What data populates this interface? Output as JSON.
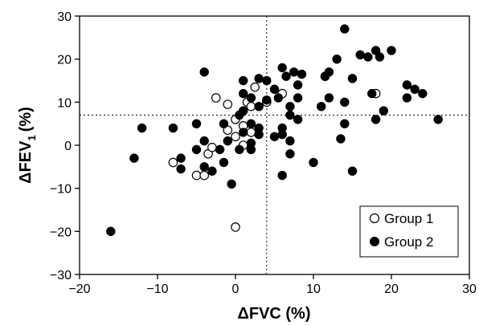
{
  "chart_data": {
    "type": "scatter",
    "xlabel": "ΔFVC (%)",
    "ylabel_main": "ΔFEV",
    "ylabel_sub": "1",
    "ylabel_unit": "(%)",
    "xlim": [
      -20,
      30
    ],
    "ylim": [
      -30,
      30
    ],
    "x_ticks": [
      -20,
      -10,
      0,
      10,
      20,
      30
    ],
    "y_ticks": [
      -30,
      -20,
      -10,
      0,
      10,
      20,
      30
    ],
    "x_tick_labels": [
      "−20",
      "−10",
      "0",
      "10",
      "20",
      "30"
    ],
    "y_tick_labels": [
      "−30",
      "−20",
      "−10",
      "0",
      "10",
      "20",
      "30"
    ],
    "reference_lines": {
      "x": 4,
      "y": 7,
      "style": "dotted"
    },
    "grid": false,
    "legend_position": "bottom-right",
    "series": [
      {
        "name": "Group 1",
        "marker": "open-circle",
        "color": "#000000",
        "points": [
          [
            -8,
            -4
          ],
          [
            -5,
            -7
          ],
          [
            -4,
            -7
          ],
          [
            -3.5,
            -2
          ],
          [
            -3,
            -0.5
          ],
          [
            -2.5,
            11
          ],
          [
            -1,
            9.5
          ],
          [
            -1,
            3.5
          ],
          [
            0,
            6
          ],
          [
            0,
            2
          ],
          [
            0,
            -19
          ],
          [
            1,
            0
          ],
          [
            1,
            4.5
          ],
          [
            1.5,
            10
          ],
          [
            2,
            9
          ],
          [
            2,
            3
          ],
          [
            2.5,
            13.5
          ],
          [
            4,
            10
          ],
          [
            6,
            12
          ],
          [
            11.5,
            16
          ],
          [
            18,
            12
          ]
        ]
      },
      {
        "name": "Group 2",
        "marker": "filled-circle",
        "color": "#000000",
        "points": [
          [
            -16,
            -20
          ],
          [
            -13,
            -3
          ],
          [
            -12,
            4
          ],
          [
            -8,
            4
          ],
          [
            -7,
            -3
          ],
          [
            -7,
            -5.5
          ],
          [
            -5,
            5
          ],
          [
            -5,
            -1
          ],
          [
            -4,
            17
          ],
          [
            -4,
            1
          ],
          [
            -4,
            -5
          ],
          [
            -3,
            -6
          ],
          [
            -2,
            -1
          ],
          [
            -1.5,
            5
          ],
          [
            -1.5,
            -4
          ],
          [
            -1,
            1
          ],
          [
            -0.5,
            -9
          ],
          [
            0.5,
            7
          ],
          [
            0.5,
            -1
          ],
          [
            1,
            15
          ],
          [
            1,
            12
          ],
          [
            1,
            8
          ],
          [
            1,
            3
          ],
          [
            2,
            11
          ],
          [
            2,
            5
          ],
          [
            2,
            0.5
          ],
          [
            2,
            -1
          ],
          [
            3,
            15.5
          ],
          [
            3,
            9
          ],
          [
            3,
            4
          ],
          [
            3,
            2.5
          ],
          [
            4,
            15
          ],
          [
            4,
            10.5
          ],
          [
            5,
            13
          ],
          [
            5,
            2
          ],
          [
            5.5,
            11
          ],
          [
            6,
            18
          ],
          [
            6,
            4
          ],
          [
            6,
            2.5
          ],
          [
            6,
            -7
          ],
          [
            6.5,
            16
          ],
          [
            7,
            9
          ],
          [
            7,
            7
          ],
          [
            7,
            1
          ],
          [
            7,
            -2
          ],
          [
            7.5,
            17
          ],
          [
            8,
            14
          ],
          [
            8,
            11
          ],
          [
            8,
            6
          ],
          [
            8.5,
            16.5
          ],
          [
            10,
            -4
          ],
          [
            11,
            9
          ],
          [
            11.5,
            16
          ],
          [
            12,
            17
          ],
          [
            12,
            11
          ],
          [
            13,
            20
          ],
          [
            13.5,
            1.5
          ],
          [
            14,
            27
          ],
          [
            14,
            10
          ],
          [
            14,
            5
          ],
          [
            15,
            15.5
          ],
          [
            15,
            -6
          ],
          [
            16,
            21
          ],
          [
            17,
            20.5
          ],
          [
            17.5,
            12
          ],
          [
            18,
            22
          ],
          [
            18,
            6
          ],
          [
            18.5,
            20.5
          ],
          [
            19,
            8
          ],
          [
            20,
            22
          ],
          [
            22,
            14
          ],
          [
            22,
            11
          ],
          [
            23,
            13
          ],
          [
            24,
            12
          ],
          [
            26,
            6
          ]
        ]
      }
    ]
  }
}
